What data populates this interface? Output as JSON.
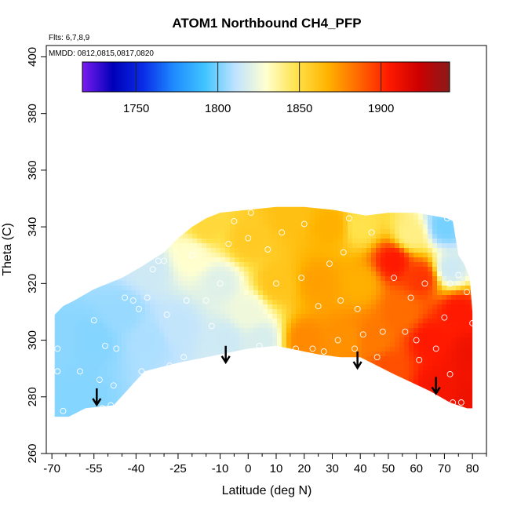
{
  "chart_data": {
    "type": "heatmap",
    "title": "ATOM1 Northbound CH4_PFP",
    "subtitle_flights": "Flts: 6,7,8,9",
    "subtitle_dates": "MMDD: 0812,0815,0817,0820",
    "xlabel": "Latitude (deg N)",
    "ylabel": "Theta (C)",
    "xlim": [
      -72,
      85
    ],
    "ylim": [
      260,
      404
    ],
    "x_ticks": [
      -70,
      -55,
      -40,
      -25,
      -10,
      0,
      10,
      20,
      30,
      40,
      50,
      60,
      70,
      80
    ],
    "x_tick_labels": [
      "-70",
      "-55",
      "-40",
      "-25",
      "-10",
      "0",
      "10",
      "20",
      "30",
      "40",
      "50",
      "60",
      "70",
      "80"
    ],
    "y_ticks": [
      260,
      280,
      300,
      320,
      340,
      360,
      380,
      400
    ],
    "y_tick_labels": [
      "260",
      "280",
      "300",
      "320",
      "340",
      "360",
      "380",
      "400"
    ],
    "colorbar": {
      "range": [
        1717,
        1942
      ],
      "ticks": [
        1750,
        1800,
        1850,
        1900
      ],
      "tick_labels": [
        "1750",
        "1800",
        "1850",
        "1900"
      ],
      "colors": [
        "#7a1cf0",
        "#0000b8",
        "#0a2de8",
        "#1f8cff",
        "#40c4ff",
        "#bfe3ff",
        "#ffffd0",
        "#ffe24a",
        "#ffb400",
        "#ff6a00",
        "#ff1a00",
        "#cc0000",
        "#8a1a1a"
      ]
    },
    "field_control_points": [
      {
        "lat": -68,
        "theta": 300,
        "value": 1803
      },
      {
        "lat": -60,
        "theta": 280,
        "value": 1802
      },
      {
        "lat": -55,
        "theta": 300,
        "value": 1802
      },
      {
        "lat": -45,
        "theta": 310,
        "value": 1805
      },
      {
        "lat": -35,
        "theta": 300,
        "value": 1808
      },
      {
        "lat": -35,
        "theta": 325,
        "value": 1815
      },
      {
        "lat": -25,
        "theta": 305,
        "value": 1812
      },
      {
        "lat": -20,
        "theta": 330,
        "value": 1830
      },
      {
        "lat": -15,
        "theta": 340,
        "value": 1852
      },
      {
        "lat": -10,
        "theta": 320,
        "value": 1820
      },
      {
        "lat": -8,
        "theta": 300,
        "value": 1815
      },
      {
        "lat": 0,
        "theta": 310,
        "value": 1825
      },
      {
        "lat": 0,
        "theta": 335,
        "value": 1858
      },
      {
        "lat": 5,
        "theta": 300,
        "value": 1818
      },
      {
        "lat": 10,
        "theta": 320,
        "value": 1860
      },
      {
        "lat": 15,
        "theta": 345,
        "value": 1862
      },
      {
        "lat": 20,
        "theta": 300,
        "value": 1878
      },
      {
        "lat": 25,
        "theta": 320,
        "value": 1872
      },
      {
        "lat": 30,
        "theta": 340,
        "value": 1868
      },
      {
        "lat": 35,
        "theta": 300,
        "value": 1876
      },
      {
        "lat": 40,
        "theta": 320,
        "value": 1868
      },
      {
        "lat": 40,
        "theta": 340,
        "value": 1848
      },
      {
        "lat": 45,
        "theta": 300,
        "value": 1882
      },
      {
        "lat": 50,
        "theta": 290,
        "value": 1892
      },
      {
        "lat": 52,
        "theta": 328,
        "value": 1905
      },
      {
        "lat": 55,
        "theta": 310,
        "value": 1885
      },
      {
        "lat": 58,
        "theta": 337,
        "value": 1840
      },
      {
        "lat": 62,
        "theta": 322,
        "value": 1898
      },
      {
        "lat": 65,
        "theta": 300,
        "value": 1905
      },
      {
        "lat": 68,
        "theta": 283,
        "value": 1908
      },
      {
        "lat": 70,
        "theta": 340,
        "value": 1800
      },
      {
        "lat": 72,
        "theta": 325,
        "value": 1815
      },
      {
        "lat": 75,
        "theta": 310,
        "value": 1905
      },
      {
        "lat": 80,
        "theta": 295,
        "value": 1910
      },
      {
        "lat": 80,
        "theta": 280,
        "value": 1910
      }
    ],
    "data_region_outline": [
      [
        -69,
        273
      ],
      [
        -64,
        273
      ],
      [
        -58,
        276
      ],
      [
        -48,
        277
      ],
      [
        -37,
        289
      ],
      [
        -25,
        292
      ],
      [
        -10,
        295
      ],
      [
        0,
        297
      ],
      [
        10,
        298
      ],
      [
        15,
        297
      ],
      [
        25,
        295
      ],
      [
        33,
        294
      ],
      [
        40,
        294
      ],
      [
        52,
        288
      ],
      [
        65,
        282
      ],
      [
        72,
        278
      ],
      [
        78,
        276
      ],
      [
        80,
        276
      ],
      [
        80,
        310
      ],
      [
        79,
        322
      ],
      [
        77,
        327
      ],
      [
        75,
        330
      ],
      [
        73,
        342
      ],
      [
        71,
        343
      ],
      [
        60,
        345
      ],
      [
        50,
        345
      ],
      [
        42,
        344
      ],
      [
        30,
        346
      ],
      [
        20,
        347
      ],
      [
        10,
        347
      ],
      [
        0,
        346
      ],
      [
        -10,
        345
      ],
      [
        -15,
        343
      ],
      [
        -20,
        340
      ],
      [
        -25,
        336
      ],
      [
        -30,
        331
      ],
      [
        -38,
        326
      ],
      [
        -45,
        322
      ],
      [
        -55,
        318
      ],
      [
        -62,
        314
      ],
      [
        -66,
        312
      ],
      [
        -69,
        309
      ]
    ],
    "sample_points": [
      [
        -68,
        289
      ],
      [
        -68,
        297
      ],
      [
        -66,
        275
      ],
      [
        -60,
        289
      ],
      [
        -55,
        307
      ],
      [
        -53,
        286
      ],
      [
        -52,
        276
      ],
      [
        -51,
        298
      ],
      [
        -49,
        277
      ],
      [
        -48,
        284
      ],
      [
        -47,
        297
      ],
      [
        -44,
        315
      ],
      [
        -41,
        314
      ],
      [
        -39,
        311
      ],
      [
        -38,
        289
      ],
      [
        -36,
        315
      ],
      [
        -34,
        325
      ],
      [
        -32,
        328
      ],
      [
        -30,
        328
      ],
      [
        -29,
        309
      ],
      [
        -28,
        291
      ],
      [
        -23,
        294
      ],
      [
        -22,
        314
      ],
      [
        -20,
        330
      ],
      [
        -15,
        314
      ],
      [
        -13,
        305
      ],
      [
        -10,
        320
      ],
      [
        -7,
        334
      ],
      [
        -5,
        342
      ],
      [
        0,
        336
      ],
      [
        1,
        345
      ],
      [
        4,
        298
      ],
      [
        7,
        332
      ],
      [
        10,
        320
      ],
      [
        12,
        338
      ],
      [
        17,
        297
      ],
      [
        19,
        322
      ],
      [
        20,
        341
      ],
      [
        23,
        297
      ],
      [
        25,
        312
      ],
      [
        27,
        296
      ],
      [
        29,
        327
      ],
      [
        32,
        300
      ],
      [
        33,
        314
      ],
      [
        34,
        331
      ],
      [
        36,
        343
      ],
      [
        38,
        297
      ],
      [
        39,
        311
      ],
      [
        41,
        302
      ],
      [
        44,
        338
      ],
      [
        46,
        294
      ],
      [
        48,
        303
      ],
      [
        52,
        322
      ],
      [
        56,
        303
      ],
      [
        58,
        315
      ],
      [
        60,
        300
      ],
      [
        61,
        293
      ],
      [
        63,
        320
      ],
      [
        67,
        297
      ],
      [
        70,
        308
      ],
      [
        71,
        343
      ],
      [
        72,
        320
      ],
      [
        72,
        288
      ],
      [
        73,
        278
      ],
      [
        75,
        323
      ],
      [
        76,
        278
      ],
      [
        78,
        317
      ],
      [
        80,
        306
      ]
    ],
    "arrows": [
      {
        "lat": -54,
        "theta": 283
      },
      {
        "lat": -8,
        "theta": 298
      },
      {
        "lat": 39,
        "theta": 296
      },
      {
        "lat": 67,
        "theta": 287
      }
    ]
  }
}
